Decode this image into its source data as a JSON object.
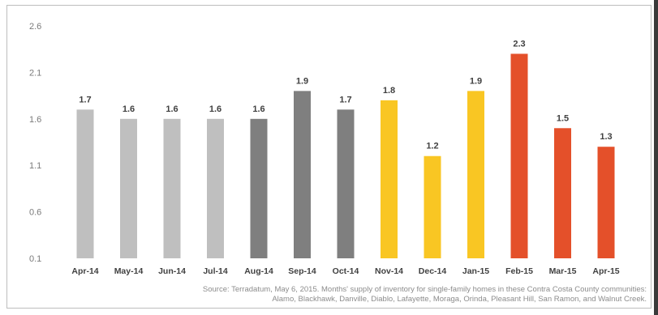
{
  "chart_data": {
    "type": "bar",
    "title": "",
    "xlabel": "",
    "ylabel": "",
    "categories": [
      "Apr-14",
      "May-14",
      "Jun-14",
      "Jul-14",
      "Aug-14",
      "Sep-14",
      "Oct-14",
      "Nov-14",
      "Dec-14",
      "Jan-15",
      "Feb-15",
      "Mar-15",
      "Apr-15"
    ],
    "values": [
      1.7,
      1.6,
      1.6,
      1.6,
      1.6,
      1.9,
      1.7,
      1.8,
      1.2,
      1.9,
      2.3,
      1.5,
      1.3
    ],
    "value_labels": [
      "1.7",
      "1.6",
      "1.6",
      "1.6",
      "1.6",
      "1.9",
      "1.7",
      "1.8",
      "1.2",
      "1.9",
      "2.3",
      "1.5",
      "1.3"
    ],
    "bar_colors": [
      "#bfbfbf",
      "#bfbfbf",
      "#bfbfbf",
      "#bfbfbf",
      "#7f7f7f",
      "#7f7f7f",
      "#7f7f7f",
      "#f9c623",
      "#f9c623",
      "#f9c623",
      "#e4502a",
      "#e4502a",
      "#e4502a"
    ],
    "yticks": [
      0.1,
      0.6,
      1.1,
      1.6,
      2.1,
      2.6
    ],
    "ytick_labels": [
      "0.1",
      "0.6",
      "1.1",
      "1.6",
      "2.1",
      "2.6"
    ],
    "ylim": [
      0.1,
      2.6
    ],
    "grid": false,
    "legend": "none"
  },
  "source": {
    "line1": "Source: Terradatum, May 6, 2015. Months' supply of inventory for single-family homes in these Contra Costa County communities:",
    "line2": "Alamo, Blackhawk, Danville, Diablo, Lafayette, Moraga, Orinda, Pleasant Hill, San Ramon, and Walnut Creek."
  }
}
